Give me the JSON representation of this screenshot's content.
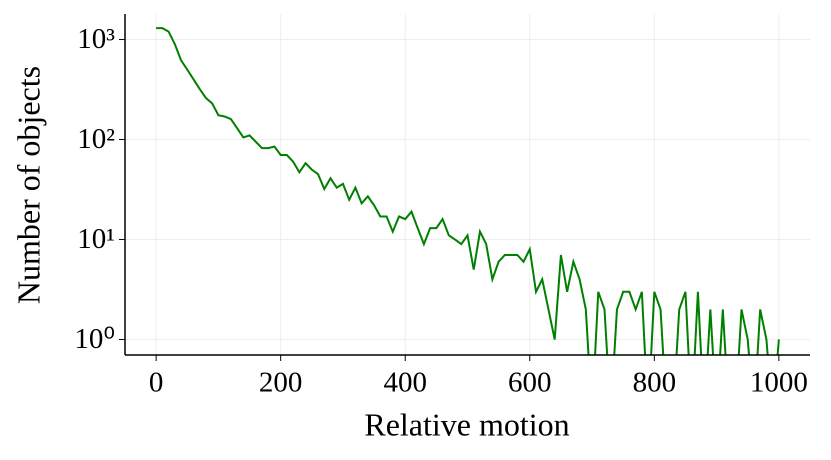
{
  "chart_data": {
    "type": "line",
    "xlabel": "Relative motion",
    "ylabel": "Number of objects",
    "xlim": [
      -50,
      1050
    ],
    "ylim": [
      0.7,
      1800
    ],
    "yscale": "log",
    "grid": true,
    "xticks": [
      0,
      200,
      400,
      600,
      800,
      1000
    ],
    "yticks": [
      {
        "value": 1,
        "label": "10⁰"
      },
      {
        "value": 10,
        "label": "10¹"
      },
      {
        "value": 100,
        "label": "10²"
      },
      {
        "value": 1000,
        "label": "10³"
      }
    ],
    "x": [
      0,
      10,
      20,
      30,
      40,
      50,
      60,
      70,
      80,
      90,
      100,
      110,
      120,
      130,
      140,
      150,
      160,
      170,
      180,
      190,
      200,
      210,
      220,
      230,
      240,
      250,
      260,
      270,
      280,
      290,
      300,
      310,
      320,
      330,
      340,
      350,
      360,
      370,
      380,
      390,
      400,
      410,
      420,
      430,
      440,
      450,
      460,
      470,
      480,
      490,
      500,
      510,
      520,
      530,
      540,
      550,
      560,
      570,
      580,
      590,
      600,
      610,
      620,
      630,
      640,
      650,
      660,
      670,
      680,
      690,
      700,
      710,
      720,
      730,
      740,
      750,
      760,
      770,
      780,
      790,
      800,
      810,
      820,
      830,
      840,
      850,
      860,
      870,
      880,
      890,
      900,
      910,
      920,
      930,
      940,
      950,
      960,
      970,
      980,
      990,
      1000
    ],
    "series": [
      {
        "color": "#008000",
        "values": [
          1300,
          1300,
          1200,
          900,
          620,
          500,
          400,
          320,
          260,
          230,
          175,
          170,
          160,
          130,
          105,
          110,
          95,
          82,
          82,
          85,
          70,
          70,
          60,
          47,
          58,
          50,
          45,
          32,
          41,
          33,
          36,
          25,
          33,
          23,
          27,
          22,
          17,
          17,
          12,
          17,
          16,
          19,
          13,
          9,
          13,
          13,
          16,
          11,
          10,
          9,
          11,
          5,
          12,
          9,
          4,
          6,
          7,
          7,
          7,
          6,
          8,
          3,
          4,
          2,
          1,
          7,
          3,
          6,
          4,
          2,
          0,
          3,
          2,
          0,
          2,
          3,
          3,
          2,
          3,
          0,
          3,
          2,
          0,
          0,
          2,
          3,
          0,
          3,
          0,
          2,
          0,
          2,
          0,
          0,
          2,
          1,
          0,
          2,
          1,
          0,
          1
        ]
      }
    ]
  }
}
